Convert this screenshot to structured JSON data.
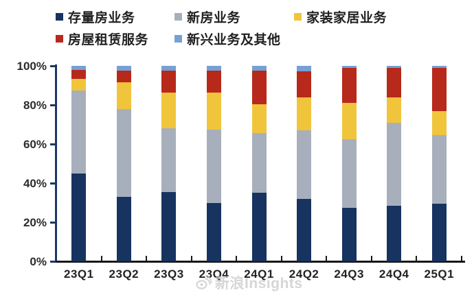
{
  "watermark": {
    "text": "新浪Insights"
  },
  "chart_data": {
    "type": "bar",
    "subtype": "100%-stacked-column",
    "title": "",
    "xlabel": "",
    "ylabel": "",
    "categories": [
      "23Q1",
      "23Q2",
      "23Q3",
      "23Q4",
      "24Q1",
      "24Q2",
      "24Q3",
      "24Q4",
      "25Q1"
    ],
    "series": [
      {
        "name": "存量房业务",
        "color": "#17335F",
        "values": [
          45,
          33,
          35.5,
          30,
          35,
          32,
          27.5,
          28.5,
          29.5
        ]
      },
      {
        "name": "新房业务",
        "color": "#A7AFBC",
        "values": [
          42.5,
          45,
          32.5,
          37.5,
          30.5,
          35,
          35,
          42.5,
          35
        ]
      },
      {
        "name": "家装家居业务",
        "color": "#F0C53C",
        "values": [
          6,
          13.5,
          18.5,
          19,
          15,
          17,
          18.5,
          13,
          12.5
        ]
      },
      {
        "name": "房屋租赁服务",
        "color": "#B7291B",
        "values": [
          4.5,
          6,
          11,
          11,
          17,
          13,
          18,
          15,
          22
        ]
      },
      {
        "name": "新兴业务及其他",
        "color": "#75A0D4",
        "values": [
          2,
          2.5,
          2.5,
          2.5,
          2.5,
          3,
          1,
          1,
          1
        ]
      }
    ],
    "y_ticks": [
      "0%",
      "20%",
      "40%",
      "60%",
      "80%",
      "100%"
    ],
    "y_tick_values": [
      0,
      20,
      40,
      60,
      80,
      100
    ],
    "ylim": [
      0,
      100
    ],
    "grid": false,
    "legend_position": "top-left-two-rows",
    "background": "#ffffff",
    "axis_colors": {
      "y_axis": "#1b3765",
      "x_axis": "#161616",
      "tick_labels": "#2b2b2b"
    }
  }
}
